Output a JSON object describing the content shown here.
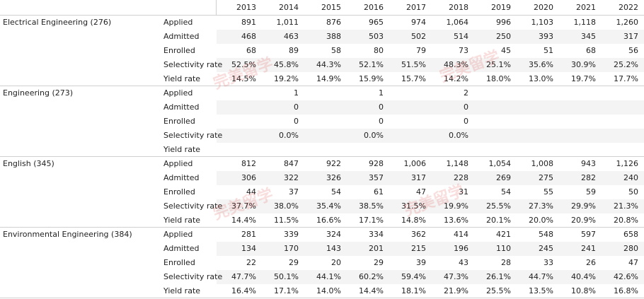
{
  "table": {
    "columns": [
      "2013",
      "2014",
      "2015",
      "2016",
      "2017",
      "2018",
      "2019",
      "2020",
      "2021",
      "2022"
    ],
    "groups": [
      {
        "name": "Electrical Engineering (276)",
        "rows": [
          {
            "metric": "Applied",
            "cells": [
              "891",
              "1,011",
              "876",
              "965",
              "974",
              "1,064",
              "996",
              "1,103",
              "1,118",
              "1,260"
            ]
          },
          {
            "metric": "Admitted",
            "cells": [
              "468",
              "463",
              "388",
              "503",
              "502",
              "514",
              "250",
              "393",
              "345",
              "317"
            ]
          },
          {
            "metric": "Enrolled",
            "cells": [
              "68",
              "89",
              "58",
              "80",
              "79",
              "73",
              "45",
              "51",
              "68",
              "56"
            ]
          },
          {
            "metric": "Selectivity rate",
            "cells": [
              "52.5%",
              "45.8%",
              "44.3%",
              "52.1%",
              "51.5%",
              "48.3%",
              "25.1%",
              "35.6%",
              "30.9%",
              "25.2%"
            ]
          },
          {
            "metric": "Yield rate",
            "cells": [
              "14.5%",
              "19.2%",
              "14.9%",
              "15.9%",
              "15.7%",
              "14.2%",
              "18.0%",
              "13.0%",
              "19.7%",
              "17.7%"
            ]
          }
        ]
      },
      {
        "name": "Engineering (273)",
        "rows": [
          {
            "metric": "Applied",
            "cells": [
              null,
              "1",
              null,
              "1",
              null,
              "2",
              null,
              null,
              null,
              null
            ]
          },
          {
            "metric": "Admitted",
            "cells": [
              null,
              "0",
              null,
              "0",
              null,
              "0",
              null,
              null,
              null,
              null
            ]
          },
          {
            "metric": "Enrolled",
            "cells": [
              null,
              "0",
              null,
              "0",
              null,
              "0",
              null,
              null,
              null,
              null
            ]
          },
          {
            "metric": "Selectivity rate",
            "cells": [
              null,
              "0.0%",
              null,
              "0.0%",
              null,
              "0.0%",
              null,
              null,
              null,
              null
            ]
          },
          {
            "metric": "Yield rate",
            "cells": [
              null,
              null,
              null,
              null,
              null,
              null,
              null,
              null,
              null,
              null
            ]
          }
        ]
      },
      {
        "name": "English (345)",
        "rows": [
          {
            "metric": "Applied",
            "cells": [
              "812",
              "847",
              "922",
              "928",
              "1,006",
              "1,148",
              "1,054",
              "1,008",
              "943",
              "1,126"
            ]
          },
          {
            "metric": "Admitted",
            "cells": [
              "306",
              "322",
              "326",
              "357",
              "317",
              "228",
              "269",
              "275",
              "282",
              "240"
            ]
          },
          {
            "metric": "Enrolled",
            "cells": [
              "44",
              "37",
              "54",
              "61",
              "47",
              "31",
              "54",
              "55",
              "59",
              "50"
            ]
          },
          {
            "metric": "Selectivity rate",
            "cells": [
              "37.7%",
              "38.0%",
              "35.4%",
              "38.5%",
              "31.5%",
              "19.9%",
              "25.5%",
              "27.3%",
              "29.9%",
              "21.3%"
            ]
          },
          {
            "metric": "Yield rate",
            "cells": [
              "14.4%",
              "11.5%",
              "16.6%",
              "17.1%",
              "14.8%",
              "13.6%",
              "20.1%",
              "20.0%",
              "20.9%",
              "20.8%"
            ]
          }
        ]
      },
      {
        "name": "Environmental Engineering (384)",
        "rows": [
          {
            "metric": "Applied",
            "cells": [
              "281",
              "339",
              "324",
              "334",
              "362",
              "414",
              "421",
              "548",
              "597",
              "658"
            ]
          },
          {
            "metric": "Admitted",
            "cells": [
              "134",
              "170",
              "143",
              "201",
              "215",
              "196",
              "110",
              "245",
              "241",
              "280"
            ]
          },
          {
            "metric": "Enrolled",
            "cells": [
              "22",
              "29",
              "20",
              "29",
              "39",
              "43",
              "28",
              "33",
              "26",
              "47"
            ]
          },
          {
            "metric": "Selectivity rate",
            "cells": [
              "47.7%",
              "50.1%",
              "44.1%",
              "60.2%",
              "59.4%",
              "47.3%",
              "26.1%",
              "44.7%",
              "40.4%",
              "42.6%"
            ]
          },
          {
            "metric": "Yield rate",
            "cells": [
              "16.4%",
              "17.1%",
              "14.0%",
              "14.4%",
              "18.1%",
              "21.9%",
              "25.5%",
              "13.5%",
              "10.8%",
              "16.8%"
            ]
          }
        ]
      }
    ]
  },
  "watermark": "完美留学"
}
